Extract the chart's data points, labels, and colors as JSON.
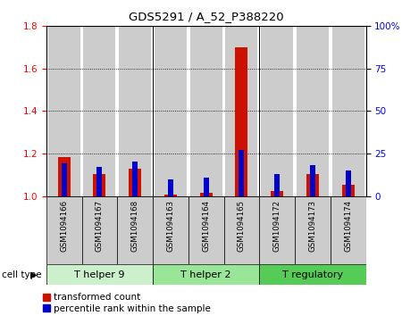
{
  "title": "GDS5291 / A_52_P388220",
  "samples": [
    "GSM1094166",
    "GSM1094167",
    "GSM1094168",
    "GSM1094163",
    "GSM1094164",
    "GSM1094165",
    "GSM1094172",
    "GSM1094173",
    "GSM1094174"
  ],
  "red_values": [
    1.185,
    1.105,
    1.13,
    1.005,
    1.015,
    1.7,
    1.025,
    1.105,
    1.055
  ],
  "blue_values_pct": [
    19,
    17,
    20,
    10,
    11,
    27,
    13,
    18,
    15
  ],
  "ylim_left": [
    1.0,
    1.8
  ],
  "ylim_right": [
    0,
    100
  ],
  "yticks_left": [
    1.0,
    1.2,
    1.4,
    1.6,
    1.8
  ],
  "yticks_right": [
    0,
    25,
    50,
    75,
    100
  ],
  "ytick_labels_right": [
    "0",
    "25",
    "50",
    "75",
    "100%"
  ],
  "groups": [
    {
      "label": "T helper 9",
      "indices": [
        0,
        1,
        2
      ],
      "color": "#ccf0cc"
    },
    {
      "label": "T helper 2",
      "indices": [
        3,
        4,
        5
      ],
      "color": "#99e699"
    },
    {
      "label": "T regulatory",
      "indices": [
        6,
        7,
        8
      ],
      "color": "#55cc55"
    }
  ],
  "group_label_prefix": "cell type",
  "red_bar_width": 0.35,
  "blue_bar_width": 0.15,
  "red_color": "#cc1100",
  "blue_color": "#0000cc",
  "bg_color": "#cccccc",
  "plot_bg": "#ffffff",
  "legend_red": "transformed count",
  "legend_blue": "percentile rank within the sample"
}
